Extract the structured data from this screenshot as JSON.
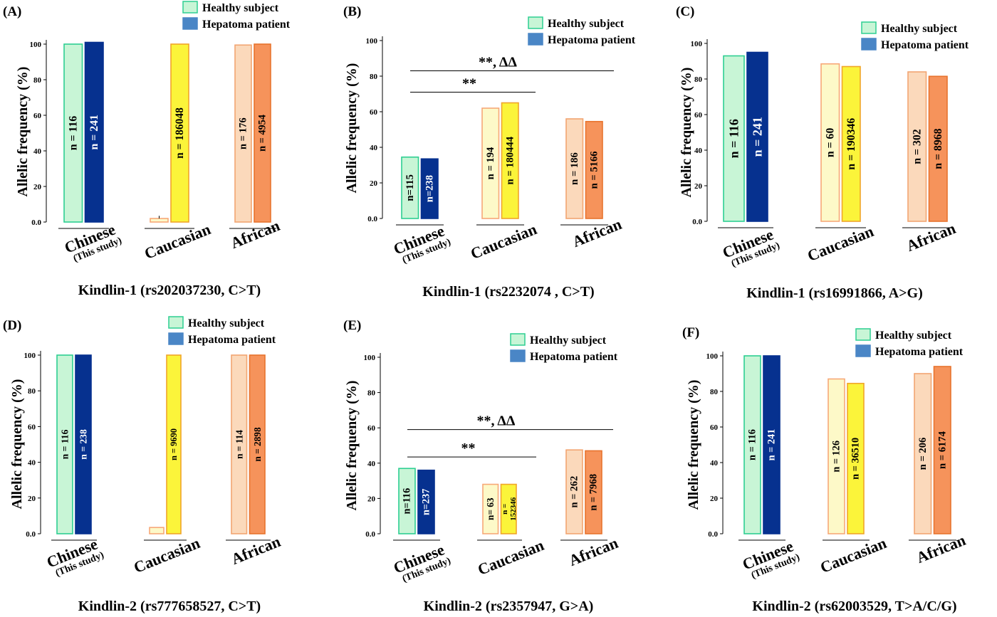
{
  "legend": [
    {
      "label": "Healthy subject",
      "color": "#c8f5d6",
      "stroke": "#2ecf92"
    },
    {
      "label": "Hepatoma patient",
      "color": "#4a86c6",
      "stroke": "#4a86c6"
    }
  ],
  "bar_styles": [
    {
      "fill": "#c8f5d6",
      "stroke": "#2ecf92"
    },
    {
      "fill": "#06318f",
      "stroke": "#06318f"
    },
    {
      "fill": "#fdf9c8",
      "stroke": "#f7a878"
    },
    {
      "fill": "#fbf43a",
      "stroke": "#f0a52a"
    },
    {
      "fill": "#fbd9bb",
      "stroke": "#f2a572"
    },
    {
      "fill": "#f6935b",
      "stroke": "#e8732e"
    }
  ],
  "ylabel": "Allelic frequency (%)",
  "y_ticks": [
    "0.0",
    "20",
    "40",
    "60",
    "80",
    "100"
  ],
  "categories": [
    {
      "main": "Chinese",
      "sub": "(This study)"
    },
    {
      "main": "Caucasian",
      "sub": ""
    },
    {
      "main": "African",
      "sub": ""
    }
  ],
  "chart_data": [
    {
      "type": "bar",
      "panel": "(A)",
      "caption": "Kindlin-1 (rs202037230, C>T)",
      "ylabel": "Allelic frequency (%)",
      "ylim": [
        0,
        100
      ],
      "categories": [
        "Chinese (This study)",
        "Caucasian",
        "African"
      ],
      "series": [
        {
          "name": "Healthy subject",
          "values": [
            100,
            2,
            99.5
          ],
          "labels": [
            "n = 116",
            "",
            "n = 176"
          ]
        },
        {
          "name": "Hepatoma patient",
          "values": [
            101,
            100,
            100
          ],
          "labels": [
            "n = 241",
            "n = 186048",
            "n = 4954"
          ]
        }
      ],
      "error_bars": [
        {
          "series": 0,
          "category": 1,
          "value": 2,
          "err": 1.5
        }
      ],
      "significance": []
    },
    {
      "type": "bar",
      "panel": "(B)",
      "caption": "Kindlin-1  (rs2232074 , C>T)",
      "ylabel": "Allelic frequency (%)",
      "ylim": [
        0,
        100
      ],
      "categories": [
        "Chinese (This study)",
        "Caucasian",
        "African"
      ],
      "series": [
        {
          "name": "Healthy subject",
          "values": [
            34.5,
            62,
            56
          ],
          "labels": [
            "n=115",
            "n = 194",
            "n = 186"
          ]
        },
        {
          "name": "Hepatoma patient",
          "values": [
            33.5,
            65,
            54.5
          ],
          "labels": [
            "n=238",
            "n = 180444",
            "n = 5166"
          ]
        }
      ],
      "error_bars": [],
      "significance": [
        {
          "text": "**",
          "value": 71,
          "from": 0,
          "to": 1
        },
        {
          "text": "**, ΔΔ",
          "value": 83,
          "from": 0,
          "to": 2
        }
      ]
    },
    {
      "type": "bar",
      "panel": "(C)",
      "caption": "Kindlin-1  (rs16991866, A>G)",
      "ylabel": "Allelic frequency (%)",
      "ylim": [
        0,
        100
      ],
      "categories": [
        "Chinese (This study)",
        "Caucasian",
        "African"
      ],
      "series": [
        {
          "name": "Healthy subject",
          "values": [
            93,
            88.5,
            84
          ],
          "labels": [
            "n = 116",
            "n = 60",
            "n = 302"
          ]
        },
        {
          "name": "Hepatoma patient",
          "values": [
            95,
            87,
            81.5
          ],
          "labels": [
            "n = 241",
            "n = 190346",
            "n = 8968"
          ]
        }
      ],
      "error_bars": [],
      "significance": []
    },
    {
      "type": "bar",
      "panel": "(D)",
      "caption": "Kindlin-2  (rs777658527, C>T)",
      "ylabel": "Allelic frequency (%)",
      "ylim": [
        0,
        100
      ],
      "categories": [
        "Chinese (This study)",
        "Caucasian",
        "African"
      ],
      "series": [
        {
          "name": "Healthy subject",
          "values": [
            100,
            3.5,
            100
          ],
          "labels": [
            "n = 116",
            "",
            "n = 114"
          ]
        },
        {
          "name": "Hepatoma patient",
          "values": [
            100,
            100,
            100
          ],
          "labels": [
            "n = 238",
            "n = 9690",
            "n = 2898"
          ]
        }
      ],
      "error_bars": [],
      "significance": []
    },
    {
      "type": "bar",
      "panel": "(E)",
      "caption": "Kindlin-2  (rs2357947, G>A)",
      "ylabel": "Allelic frequency (%)",
      "ylim": [
        0,
        100
      ],
      "categories": [
        "Chinese (This study)",
        "Caucasian",
        "African"
      ],
      "series": [
        {
          "name": "Healthy subject",
          "values": [
            37,
            28,
            47.5
          ],
          "labels": [
            "n=116",
            "n= 63",
            "n = 262"
          ]
        },
        {
          "name": "Hepatoma patient",
          "values": [
            36,
            28,
            47
          ],
          "labels": [
            "n=237",
            "n = 152346",
            "n = 7968"
          ]
        }
      ],
      "error_bars": [],
      "significance": [
        {
          "text": "**",
          "value": 43.5,
          "from": 0,
          "to": 1
        },
        {
          "text": "**, ΔΔ",
          "value": 59,
          "from": 0,
          "to": 2
        }
      ]
    },
    {
      "type": "bar",
      "panel": "(F)",
      "caption": "Kindlin-2  (rs62003529,  T>A/C/G)",
      "ylabel": "Allelic frequency (%)",
      "ylim": [
        0,
        100
      ],
      "categories": [
        "Chinese (This study)",
        "Caucasian",
        "African"
      ],
      "series": [
        {
          "name": "Healthy subject",
          "values": [
            100,
            87,
            90
          ],
          "labels": [
            "n = 116",
            "n = 126",
            "n = 206"
          ]
        },
        {
          "name": "Hepatoma patient",
          "values": [
            100,
            84.5,
            94
          ],
          "labels": [
            "n = 241",
            "n = 36510",
            "n = 6174"
          ]
        }
      ],
      "error_bars": [],
      "significance": []
    }
  ]
}
